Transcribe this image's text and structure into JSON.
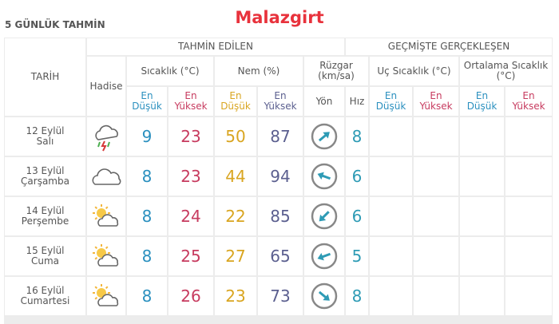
{
  "header": {
    "title": "5 GÜNLÜK TAHMİN",
    "location": "Malazgirt"
  },
  "table": {
    "date_header": "TARİH",
    "event_header": "Hadise",
    "forecast_header": "TAHMİN EDİLEN",
    "past_header": "GEÇMİŞTE GERÇEKLEŞEN",
    "groups": [
      "Sıcaklık (°C)",
      "Nem (%)",
      "Rüzgar (km/sa)",
      "Uç Sıcaklık (°C)",
      "Ortalama Sıcaklık (°C)"
    ],
    "subheaders": [
      "En Düşük",
      "En Yüksek",
      "En Düşük",
      "En Yüksek",
      "Yön",
      "Hız",
      "En Düşük",
      "En Yüksek",
      "En Düşük",
      "En Yüksek"
    ],
    "rows": [
      {
        "date": "12 Eylül Salı",
        "temp_min": 9,
        "temp_max": 23,
        "humidity_min": 50,
        "humidity_max": 87,
        "wind_speed": 8
      },
      {
        "date": "13 Eylül Çarşamba",
        "temp_min": 8,
        "temp_max": 23,
        "humidity_min": 44,
        "humidity_max": 94,
        "wind_speed": 6
      },
      {
        "date": "14 Eylül Perşembe",
        "temp_min": 8,
        "temp_max": 24,
        "humidity_min": 22,
        "humidity_max": 85,
        "wind_speed": 6
      },
      {
        "date": "15 Eylül Cuma",
        "temp_min": 8,
        "temp_max": 25,
        "humidity_min": 27,
        "humidity_max": 65,
        "wind_speed": 5
      },
      {
        "date": "16 Eylül Cumartesi",
        "temp_min": 8,
        "temp_max": 26,
        "humidity_min": 23,
        "humidity_max": 73,
        "wind_speed": 8
      }
    ]
  }
}
